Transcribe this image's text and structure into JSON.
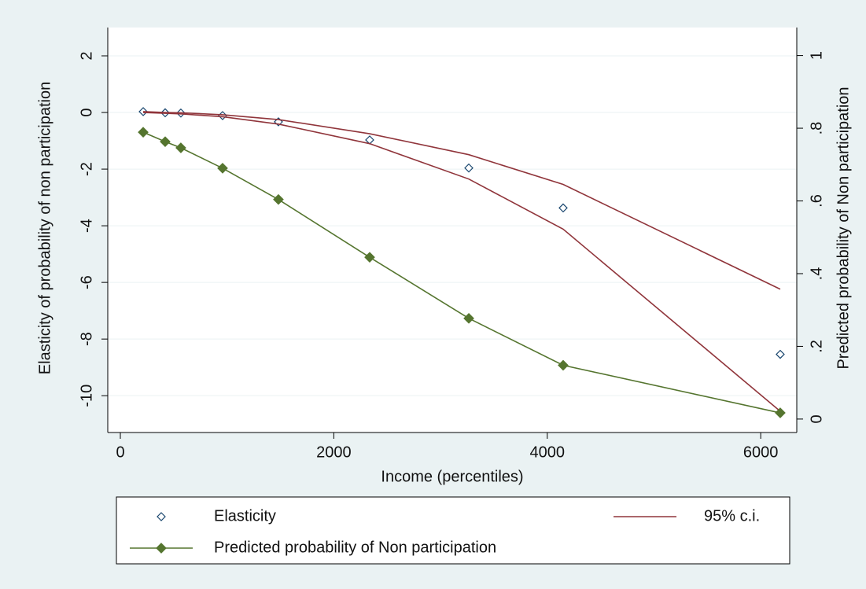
{
  "chart_data": {
    "type": "line",
    "x_label": "Income (percentiles)",
    "y_label": "Elasticity of probability of non participation",
    "y2_label": "Predicted probability of Non participation",
    "x": [
      214,
      420,
      567,
      958,
      1481,
      2336,
      3265,
      4149,
      6183
    ],
    "series": [
      {
        "name": "Elasticity",
        "color": "#1a476f",
        "marker": "hollow-diamond",
        "line": false,
        "values": [
          0.03,
          -0.01,
          -0.02,
          -0.11,
          -0.33,
          -0.97,
          -1.96,
          -3.37,
          -8.54
        ]
      },
      {
        "name": "95% c.i.",
        "color": "#90353b",
        "marker": "none",
        "line": true,
        "upper": [
          0.03,
          0.0,
          -0.01,
          -0.08,
          -0.25,
          -0.75,
          -1.49,
          -2.54,
          -6.24
        ],
        "lower": [
          0.0,
          -0.03,
          -0.05,
          -0.15,
          -0.41,
          -1.1,
          -2.35,
          -4.12,
          -10.55
        ]
      },
      {
        "name": "Predicted probability of Non participation",
        "color": "#55752f",
        "marker": "diamond",
        "line": true,
        "axis": "y2",
        "values": [
          0.789,
          0.763,
          0.746,
          0.69,
          0.604,
          0.445,
          0.277,
          0.148,
          0.017
        ]
      }
    ],
    "xlim": [
      -118,
      6338
    ],
    "xticks": [
      0,
      2000,
      4000,
      6000
    ],
    "ylim": [
      -11.3,
      3
    ],
    "yticks": [
      -10,
      -8,
      -6,
      -4,
      -2,
      0,
      2
    ],
    "y2lim": [
      -0.037,
      1.077
    ],
    "y2ticks": [
      0,
      {
        "value": 0.2,
        "label": ".2"
      },
      {
        "value": 0.4,
        "label": ".4"
      },
      {
        "value": 0.6,
        "label": ".6"
      },
      {
        "value": 0.8,
        "label": ".8"
      },
      1
    ],
    "grid": true
  }
}
